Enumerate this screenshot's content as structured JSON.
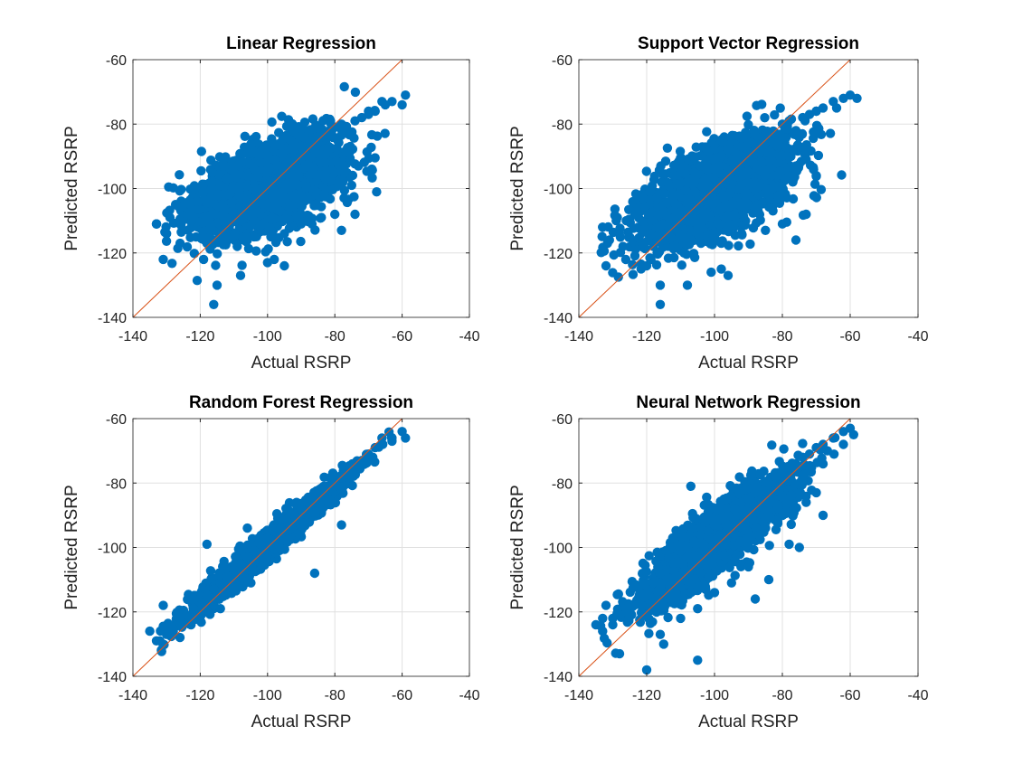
{
  "colors": {
    "points": "#0072BD",
    "reference_line": "#D95319",
    "grid": "#E0E0E0",
    "axis": "#262626"
  },
  "chart_data": [
    {
      "type": "scatter",
      "title": "Linear Regression",
      "xlabel": "Actual RSRP",
      "ylabel": "Predicted RSRP",
      "xlim": [
        -140,
        -40
      ],
      "ylim": [
        -140,
        -60
      ],
      "xticks": [
        -140,
        -120,
        -100,
        -80,
        -60,
        -40
      ],
      "yticks": [
        -140,
        -120,
        -100,
        -80,
        -60
      ],
      "grid": true,
      "reference_line": {
        "from": [
          -140,
          -140
        ],
        "to": [
          -60,
          -60
        ]
      },
      "generator": {
        "slope": 0.38,
        "intercept": -61.5,
        "spread": 6.5,
        "seed": 11
      },
      "outliers": [
        [
          -116,
          -136
        ],
        [
          -115,
          -130
        ],
        [
          -108,
          -127
        ],
        [
          -100,
          -123
        ],
        [
          -95,
          -124
        ],
        [
          -98,
          -122
        ],
        [
          -133,
          -111
        ],
        [
          -131,
          -122
        ],
        [
          -119,
          -122
        ],
        [
          -59,
          -71
        ],
        [
          -60,
          -74
        ],
        [
          -66,
          -73
        ],
        [
          -70,
          -76
        ],
        [
          -73,
          -93
        ],
        [
          -77,
          -95
        ],
        [
          -75,
          -99
        ],
        [
          -69,
          -94
        ],
        [
          -74,
          -108
        ],
        [
          -78,
          -113
        ],
        [
          -80,
          -108
        ],
        [
          -84,
          -109
        ],
        [
          -90,
          -111
        ],
        [
          -95,
          -114
        ],
        [
          -99,
          -115
        ],
        [
          -104,
          -115
        ],
        [
          -118,
          -117
        ],
        [
          -126,
          -117
        ],
        [
          -130,
          -114
        ]
      ],
      "points": [
        [
          -133,
          -111
        ],
        [
          -129,
          -109
        ],
        [
          -126,
          -110
        ],
        [
          -123,
          -108
        ],
        [
          -121,
          -104
        ],
        [
          -119,
          -101
        ],
        [
          -117,
          -103
        ],
        [
          -114,
          -99
        ],
        [
          -112,
          -97
        ],
        [
          -110,
          -95
        ],
        [
          -108,
          -99
        ],
        [
          -106,
          -96
        ],
        [
          -104,
          -94
        ],
        [
          -102,
          -92
        ],
        [
          -100,
          -95
        ],
        [
          -98,
          -91
        ],
        [
          -96,
          -89
        ],
        [
          -94,
          -92
        ],
        [
          -92,
          -88
        ],
        [
          -90,
          -87
        ],
        [
          -88,
          -90
        ],
        [
          -86,
          -85
        ],
        [
          -84,
          -84
        ],
        [
          -82,
          -88
        ],
        [
          -80,
          -81
        ],
        [
          -78,
          -80
        ],
        [
          -76,
          -83
        ],
        [
          -74,
          -79
        ],
        [
          -72,
          -78
        ],
        [
          -70,
          -77
        ],
        [
          -68,
          -76
        ],
        [
          -65,
          -74
        ],
        [
          -63,
          -73
        ]
      ]
    },
    {
      "type": "scatter",
      "title": "Support Vector Regression",
      "xlabel": "Actual RSRP",
      "ylabel": "Predicted RSRP",
      "xlim": [
        -140,
        -40
      ],
      "ylim": [
        -140,
        -60
      ],
      "xticks": [
        -140,
        -120,
        -100,
        -80,
        -60,
        -40
      ],
      "yticks": [
        -140,
        -120,
        -100,
        -80,
        -60
      ],
      "grid": true,
      "reference_line": {
        "from": [
          -140,
          -140
        ],
        "to": [
          -60,
          -60
        ]
      },
      "generator": {
        "slope": 0.42,
        "intercept": -59.0,
        "spread": 6.5,
        "seed": 23
      },
      "outliers": [
        [
          -116,
          -136
        ],
        [
          -116,
          -130
        ],
        [
          -108,
          -130
        ],
        [
          -101,
          -126
        ],
        [
          -96,
          -127
        ],
        [
          -98,
          -125
        ],
        [
          -133,
          -112
        ],
        [
          -132,
          -124
        ],
        [
          -120,
          -124
        ],
        [
          -60,
          -71
        ],
        [
          -58,
          -72
        ],
        [
          -64,
          -75
        ],
        [
          -70,
          -76
        ],
        [
          -73,
          -91
        ],
        [
          -76,
          -93
        ],
        [
          -70,
          -96
        ],
        [
          -73,
          -108
        ],
        [
          -76,
          -116
        ],
        [
          -80,
          -111
        ],
        [
          -85,
          -113
        ],
        [
          -92,
          -114
        ],
        [
          -98,
          -117
        ],
        [
          -104,
          -117
        ],
        [
          -118,
          -118
        ],
        [
          -127,
          -118
        ],
        [
          -131,
          -116
        ],
        [
          -109,
          -120
        ]
      ],
      "points": [
        [
          -133,
          -112
        ],
        [
          -129,
          -110
        ],
        [
          -126,
          -110
        ],
        [
          -123,
          -107
        ],
        [
          -121,
          -103
        ],
        [
          -119,
          -101
        ],
        [
          -117,
          -103
        ],
        [
          -114,
          -98
        ],
        [
          -112,
          -96
        ],
        [
          -110,
          -95
        ],
        [
          -108,
          -98
        ],
        [
          -106,
          -95
        ],
        [
          -104,
          -93
        ],
        [
          -102,
          -91
        ],
        [
          -100,
          -94
        ],
        [
          -98,
          -90
        ],
        [
          -96,
          -88
        ],
        [
          -94,
          -91
        ],
        [
          -92,
          -87
        ],
        [
          -90,
          -86
        ],
        [
          -88,
          -89
        ],
        [
          -86,
          -84
        ],
        [
          -84,
          -83
        ],
        [
          -82,
          -86
        ],
        [
          -80,
          -80
        ],
        [
          -78,
          -79
        ],
        [
          -76,
          -82
        ],
        [
          -74,
          -78
        ],
        [
          -72,
          -77
        ],
        [
          -70,
          -76
        ],
        [
          -68,
          -75
        ],
        [
          -65,
          -73
        ],
        [
          -62,
          -72
        ]
      ]
    },
    {
      "type": "scatter",
      "title": "Random Forest Regression",
      "xlabel": "Actual RSRP",
      "ylabel": "Predicted RSRP",
      "xlim": [
        -140,
        -40
      ],
      "ylim": [
        -140,
        -60
      ],
      "xticks": [
        -140,
        -120,
        -100,
        -80,
        -60,
        -40
      ],
      "yticks": [
        -140,
        -120,
        -100,
        -80,
        -60
      ],
      "grid": true,
      "reference_line": {
        "from": [
          -140,
          -140
        ],
        "to": [
          -60,
          -60
        ]
      },
      "generator": {
        "slope": 0.9,
        "intercept": -9.5,
        "spread": 2.2,
        "seed": 37
      },
      "outliers": [
        [
          -135,
          -126
        ],
        [
          -131,
          -118
        ],
        [
          -132,
          -129
        ],
        [
          -106,
          -94
        ],
        [
          -118,
          -99
        ],
        [
          -86,
          -108
        ],
        [
          -78,
          -93
        ],
        [
          -60,
          -64
        ],
        [
          -59,
          -66
        ],
        [
          -63,
          -67
        ],
        [
          -66,
          -66
        ],
        [
          -114,
          -119
        ],
        [
          -122,
          -116
        ],
        [
          -105,
          -106
        ],
        [
          -97,
          -96
        ]
      ],
      "points": [
        [
          -133,
          -129
        ],
        [
          -130,
          -127
        ],
        [
          -128,
          -126
        ],
        [
          -126,
          -122
        ],
        [
          -124,
          -121
        ],
        [
          -122,
          -119
        ],
        [
          -120,
          -117
        ],
        [
          -118,
          -115
        ],
        [
          -116,
          -113
        ],
        [
          -114,
          -111
        ],
        [
          -112,
          -109
        ],
        [
          -110,
          -107
        ],
        [
          -108,
          -105
        ],
        [
          -106,
          -103
        ],
        [
          -104,
          -101
        ],
        [
          -102,
          -99
        ],
        [
          -100,
          -97
        ],
        [
          -98,
          -95
        ],
        [
          -96,
          -94
        ],
        [
          -94,
          -92
        ],
        [
          -92,
          -90
        ],
        [
          -90,
          -88
        ],
        [
          -88,
          -86
        ],
        [
          -86,
          -85
        ],
        [
          -84,
          -83
        ],
        [
          -82,
          -81
        ],
        [
          -80,
          -80
        ],
        [
          -78,
          -78
        ],
        [
          -76,
          -76
        ],
        [
          -74,
          -75
        ],
        [
          -72,
          -73
        ],
        [
          -70,
          -71
        ],
        [
          -68,
          -69
        ],
        [
          -66,
          -68
        ],
        [
          -63,
          -66
        ]
      ]
    },
    {
      "type": "scatter",
      "title": "Neural Network Regression",
      "xlabel": "Actual RSRP",
      "ylabel": "Predicted RSRP",
      "xlim": [
        -140,
        -40
      ],
      "ylim": [
        -140,
        -60
      ],
      "xticks": [
        -140,
        -120,
        -100,
        -80,
        -60,
        -40
      ],
      "yticks": [
        -140,
        -120,
        -100,
        -80,
        -60
      ],
      "grid": true,
      "reference_line": {
        "from": [
          -140,
          -140
        ],
        "to": [
          -60,
          -60
        ]
      },
      "generator": {
        "slope": 0.8,
        "intercept": -18.5,
        "spread": 4.8,
        "seed": 51
      },
      "outliers": [
        [
          -120,
          -138
        ],
        [
          -105,
          -135
        ],
        [
          -107,
          -81
        ],
        [
          -135,
          -124
        ],
        [
          -128,
          -133
        ],
        [
          -115,
          -130
        ],
        [
          -88,
          -116
        ],
        [
          -75,
          -100
        ],
        [
          -78,
          -99
        ],
        [
          -60,
          -63
        ],
        [
          -59,
          -65
        ],
        [
          -62,
          -68
        ],
        [
          -70,
          -83
        ],
        [
          -68,
          -90
        ],
        [
          -73,
          -86
        ],
        [
          -84,
          -110
        ],
        [
          -90,
          -106
        ],
        [
          -95,
          -111
        ],
        [
          -100,
          -114
        ],
        [
          -105,
          -119
        ],
        [
          -110,
          -122
        ],
        [
          -116,
          -127
        ],
        [
          -132,
          -118
        ],
        [
          -133,
          -122
        ]
      ],
      "points": [
        [
          -133,
          -126
        ],
        [
          -130,
          -124
        ],
        [
          -128,
          -121
        ],
        [
          -126,
          -120
        ],
        [
          -124,
          -118
        ],
        [
          -122,
          -114
        ],
        [
          -120,
          -114
        ],
        [
          -118,
          -111
        ],
        [
          -116,
          -108
        ],
        [
          -114,
          -107
        ],
        [
          -112,
          -105
        ],
        [
          -110,
          -101
        ],
        [
          -108,
          -100
        ],
        [
          -106,
          -98
        ],
        [
          -104,
          -96
        ],
        [
          -102,
          -95
        ],
        [
          -100,
          -93
        ],
        [
          -98,
          -91
        ],
        [
          -96,
          -90
        ],
        [
          -94,
          -88
        ],
        [
          -92,
          -86
        ],
        [
          -90,
          -85
        ],
        [
          -88,
          -83
        ],
        [
          -86,
          -82
        ],
        [
          -84,
          -80
        ],
        [
          -82,
          -78
        ],
        [
          -80,
          -77
        ],
        [
          -78,
          -75
        ],
        [
          -76,
          -74
        ],
        [
          -74,
          -72
        ],
        [
          -72,
          -71
        ],
        [
          -70,
          -69
        ],
        [
          -68,
          -68
        ],
        [
          -65,
          -66
        ],
        [
          -62,
          -64
        ]
      ]
    }
  ]
}
